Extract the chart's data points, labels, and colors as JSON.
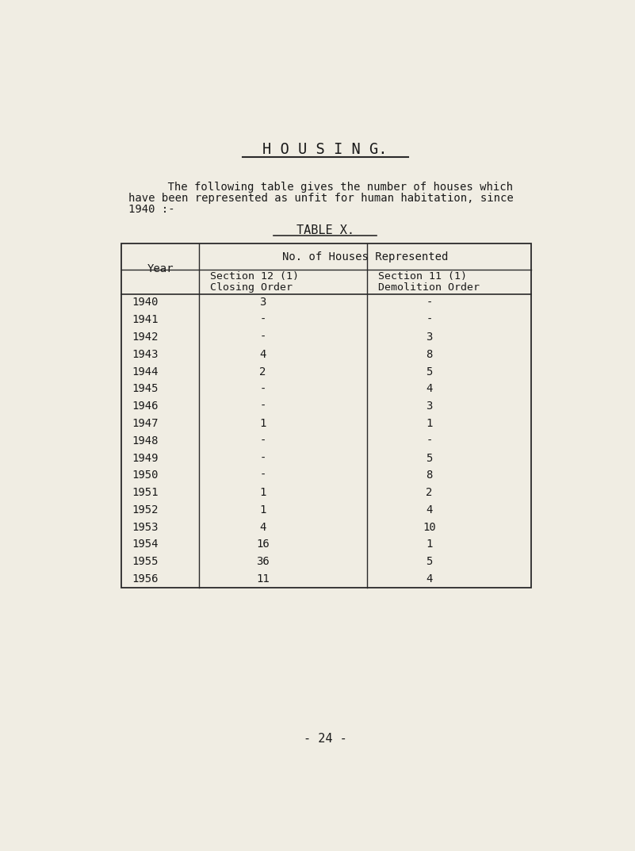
{
  "bg_color": "#f0ede3",
  "title": "H O U S I N G.",
  "paragraph_line1": "    The following table gives the number of houses which",
  "paragraph_line2": "have been represented as unfit for human habitation, since",
  "paragraph_line3": "1940 :-",
  "table_title": "TABLE X.",
  "col_header_span": "No. of Houses Represented",
  "col2_header1": "Section 12 (1)",
  "col2_header2": "Closing Order",
  "col3_header1": "Section 11 (1)",
  "col3_header2": "Demolition Order",
  "year_header": "Year",
  "years": [
    "1940",
    "1941",
    "1942",
    "1943",
    "1944",
    "1945",
    "1946",
    "1947",
    "1948",
    "1949",
    "1950",
    "1951",
    "1952",
    "1953",
    "1954",
    "1955",
    "1956"
  ],
  "col2": [
    "3",
    "-",
    "-",
    "4",
    "2",
    "-",
    "-",
    "1",
    "-",
    "-",
    "-",
    "1",
    "1",
    "4",
    "16",
    "36",
    "11"
  ],
  "col3": [
    "-",
    "-",
    "3",
    "8",
    "5",
    "4",
    "3",
    "1",
    "-",
    "5",
    "8",
    "2",
    "4",
    "10",
    "1",
    "5",
    "4"
  ],
  "page_number": "- 24 -",
  "text_color": "#1a1a1a",
  "line_color": "#2a2a2a",
  "font_family": "monospace",
  "title_fontsize": 13.5,
  "body_fontsize": 10.0,
  "table_fontsize": 10.0
}
